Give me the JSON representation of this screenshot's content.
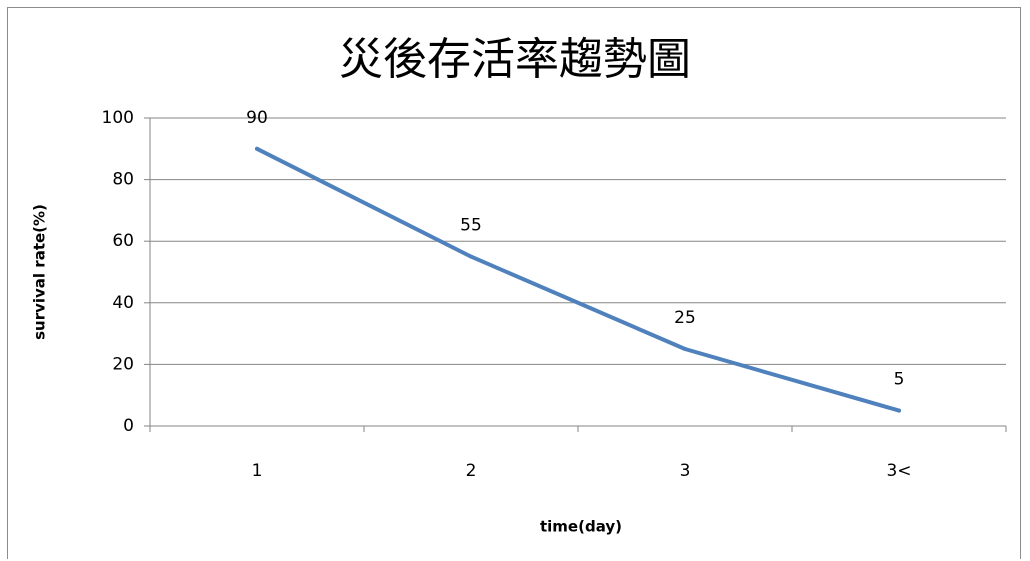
{
  "chart_data": {
    "type": "line",
    "title": "災後存活率趨勢圖",
    "xlabel": "time(day)",
    "ylabel": "survival rate(%)",
    "categories": [
      "1",
      "2",
      "3",
      "3<"
    ],
    "series": [
      {
        "values": [
          90,
          55,
          25,
          5
        ],
        "color": "#4f81bd"
      }
    ],
    "data_labels": [
      "90",
      "55",
      "25",
      "5"
    ],
    "yticks": [
      "0",
      "20",
      "40",
      "60",
      "80",
      "100"
    ],
    "ylim": [
      0,
      100
    ],
    "grid": "horizontal",
    "legend": "none"
  }
}
